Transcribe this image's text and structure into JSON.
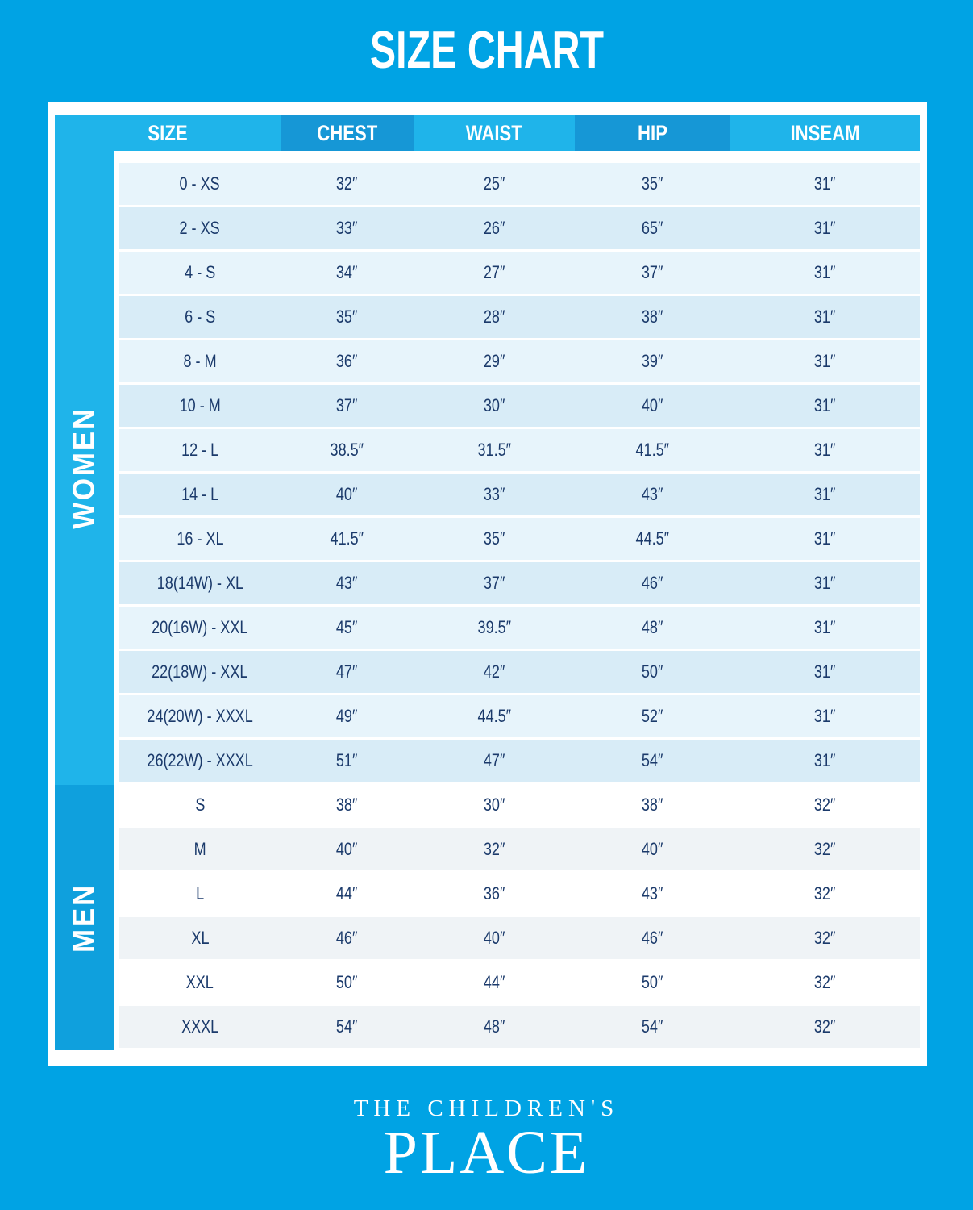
{
  "title": "SIZE CHART",
  "chart_data": {
    "type": "table",
    "title": "SIZE CHART",
    "columns": [
      "SIZE",
      "CHEST",
      "WAIST",
      "HIP",
      "INSEAM"
    ],
    "unit": "inches",
    "sections": [
      {
        "label": "WOMEN",
        "rows": [
          [
            "0 - XS",
            "32″",
            "25″",
            "35″",
            "31″"
          ],
          [
            "2 - XS",
            "33″",
            "26″",
            "65″",
            "31″"
          ],
          [
            "4 - S",
            "34″",
            "27″",
            "37″",
            "31″"
          ],
          [
            "6 - S",
            "35″",
            "28″",
            "38″",
            "31″"
          ],
          [
            "8 - M",
            "36″",
            "29″",
            "39″",
            "31″"
          ],
          [
            "10 - M",
            "37″",
            "30″",
            "40″",
            "31″"
          ],
          [
            "12 - L",
            "38.5″",
            "31.5″",
            "41.5″",
            "31″"
          ],
          [
            "14 - L",
            "40″",
            "33″",
            "43″",
            "31″"
          ],
          [
            "16 - XL",
            "41.5″",
            "35″",
            "44.5″",
            "31″"
          ],
          [
            "18(14W) - XL",
            "43″",
            "37″",
            "46″",
            "31″"
          ],
          [
            "20(16W) - XXL",
            "45″",
            "39.5″",
            "48″",
            "31″"
          ],
          [
            "22(18W) - XXL",
            "47″",
            "42″",
            "50″",
            "31″"
          ],
          [
            "24(20W) - XXXL",
            "49″",
            "44.5″",
            "52″",
            "31″"
          ],
          [
            "26(22W) - XXXL",
            "51″",
            "47″",
            "54″",
            "31″"
          ]
        ]
      },
      {
        "label": "MEN",
        "rows": [
          [
            "S",
            "38″",
            "30″",
            "38″",
            "32″"
          ],
          [
            "M",
            "40″",
            "32″",
            "40″",
            "32″"
          ],
          [
            "L",
            "44″",
            "36″",
            "43″",
            "32″"
          ],
          [
            "XL",
            "46″",
            "40″",
            "46″",
            "32″"
          ],
          [
            "XXL",
            "50″",
            "44″",
            "50″",
            "32″"
          ],
          [
            "XXXL",
            "54″",
            "48″",
            "54″",
            "32″"
          ]
        ]
      }
    ]
  },
  "logo": {
    "line1": "THE CHILDREN'S",
    "line2": "PLACE"
  },
  "colors": {
    "background": "#00A3E4",
    "title_text": "#FFFFFF",
    "header_light": "#1FB4EA",
    "header_dark": "#1697D6",
    "strip_women": "#1FB4EA",
    "strip_men": "#0FA0DD",
    "row_women_odd": "#E7F4FB",
    "row_women_even": "#D8ECF7",
    "row_men_odd": "#FFFFFF",
    "row_men_even": "#EFF3F6",
    "text": "#1B3A6B"
  }
}
